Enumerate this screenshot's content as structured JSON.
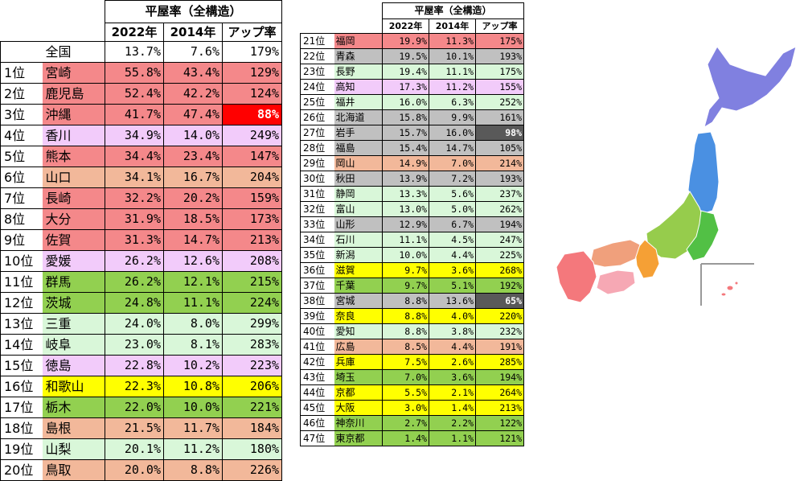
{
  "colors": {
    "kyushu": "#f4888a",
    "shikoku": "#f2cbfa",
    "chugoku": "#f2b89a",
    "kanto": "#92d050",
    "kansai": "#ffff00",
    "chubu": "#d9f7d9",
    "tohoku": "#c0c0c0",
    "hokkaido_tbl": "#c0c0c0",
    "national": "#ffffff",
    "rise_red": "#ff0000",
    "rise_gray": "#595959",
    "map_hokkaido": "#8080e0",
    "map_tohoku": "#4a90e2",
    "map_kanto": "#52c045",
    "map_chubu": "#96cc4c",
    "map_kansai": "#f5a035",
    "map_chugoku": "#f0a07c",
    "map_shikoku": "#f6a8b4",
    "map_kyushu": "#f4787c",
    "map_okinawa_frame": "#999999"
  },
  "chart_data": {
    "type": "table",
    "title": "平屋率（全構造）",
    "columns": [
      "2022年",
      "2014年",
      "アップ率"
    ],
    "national": {
      "label": "全国",
      "y2022": "13.7%",
      "y2014": "7.6%",
      "rise": "179%"
    },
    "rows": [
      {
        "rank": "1位",
        "pref": "宮崎",
        "y2022": "55.8%",
        "y2014": "43.4%",
        "rise": "129%",
        "region": "kyushu"
      },
      {
        "rank": "2位",
        "pref": "鹿児島",
        "y2022": "52.4%",
        "y2014": "42.2%",
        "rise": "124%",
        "region": "kyushu"
      },
      {
        "rank": "3位",
        "pref": "沖縄",
        "y2022": "41.7%",
        "y2014": "47.4%",
        "rise": "88%",
        "region": "kyushu",
        "highlight": "red"
      },
      {
        "rank": "4位",
        "pref": "香川",
        "y2022": "34.9%",
        "y2014": "14.0%",
        "rise": "249%",
        "region": "shikoku"
      },
      {
        "rank": "5位",
        "pref": "熊本",
        "y2022": "34.4%",
        "y2014": "23.4%",
        "rise": "147%",
        "region": "kyushu"
      },
      {
        "rank": "6位",
        "pref": "山口",
        "y2022": "34.1%",
        "y2014": "16.7%",
        "rise": "204%",
        "region": "chugoku"
      },
      {
        "rank": "7位",
        "pref": "長崎",
        "y2022": "32.2%",
        "y2014": "20.2%",
        "rise": "159%",
        "region": "kyushu"
      },
      {
        "rank": "8位",
        "pref": "大分",
        "y2022": "31.9%",
        "y2014": "18.5%",
        "rise": "173%",
        "region": "kyushu"
      },
      {
        "rank": "9位",
        "pref": "佐賀",
        "y2022": "31.3%",
        "y2014": "14.7%",
        "rise": "213%",
        "region": "kyushu"
      },
      {
        "rank": "10位",
        "pref": "愛媛",
        "y2022": "26.2%",
        "y2014": "12.6%",
        "rise": "208%",
        "region": "shikoku"
      },
      {
        "rank": "11位",
        "pref": "群馬",
        "y2022": "26.2%",
        "y2014": "12.1%",
        "rise": "215%",
        "region": "kanto"
      },
      {
        "rank": "12位",
        "pref": "茨城",
        "y2022": "24.8%",
        "y2014": "11.1%",
        "rise": "224%",
        "region": "kanto"
      },
      {
        "rank": "13位",
        "pref": "三重",
        "y2022": "24.0%",
        "y2014": "8.0%",
        "rise": "299%",
        "region": "chubu"
      },
      {
        "rank": "14位",
        "pref": "岐阜",
        "y2022": "23.0%",
        "y2014": "8.1%",
        "rise": "283%",
        "region": "chubu"
      },
      {
        "rank": "15位",
        "pref": "徳島",
        "y2022": "22.8%",
        "y2014": "10.2%",
        "rise": "223%",
        "region": "shikoku"
      },
      {
        "rank": "16位",
        "pref": "和歌山",
        "y2022": "22.3%",
        "y2014": "10.8%",
        "rise": "206%",
        "region": "kansai"
      },
      {
        "rank": "17位",
        "pref": "栃木",
        "y2022": "22.0%",
        "y2014": "10.0%",
        "rise": "221%",
        "region": "kanto"
      },
      {
        "rank": "18位",
        "pref": "島根",
        "y2022": "21.5%",
        "y2014": "11.7%",
        "rise": "184%",
        "region": "chugoku"
      },
      {
        "rank": "19位",
        "pref": "山梨",
        "y2022": "20.1%",
        "y2014": "11.2%",
        "rise": "180%",
        "region": "chubu"
      },
      {
        "rank": "20位",
        "pref": "鳥取",
        "y2022": "20.0%",
        "y2014": "8.8%",
        "rise": "226%",
        "region": "chugoku"
      },
      {
        "rank": "21位",
        "pref": "福岡",
        "y2022": "19.9%",
        "y2014": "11.3%",
        "rise": "175%",
        "region": "kyushu"
      },
      {
        "rank": "22位",
        "pref": "青森",
        "y2022": "19.5%",
        "y2014": "10.1%",
        "rise": "193%",
        "region": "tohoku"
      },
      {
        "rank": "23位",
        "pref": "長野",
        "y2022": "19.4%",
        "y2014": "11.1%",
        "rise": "175%",
        "region": "chubu"
      },
      {
        "rank": "24位",
        "pref": "高知",
        "y2022": "17.3%",
        "y2014": "11.2%",
        "rise": "155%",
        "region": "shikoku"
      },
      {
        "rank": "25位",
        "pref": "福井",
        "y2022": "16.0%",
        "y2014": "6.3%",
        "rise": "252%",
        "region": "chubu"
      },
      {
        "rank": "26位",
        "pref": "北海道",
        "y2022": "15.8%",
        "y2014": "9.9%",
        "rise": "161%",
        "region": "hokkaido_tbl"
      },
      {
        "rank": "27位",
        "pref": "岩手",
        "y2022": "15.7%",
        "y2014": "16.0%",
        "rise": "98%",
        "region": "tohoku",
        "highlight": "gray"
      },
      {
        "rank": "28位",
        "pref": "福島",
        "y2022": "15.4%",
        "y2014": "14.7%",
        "rise": "105%",
        "region": "tohoku"
      },
      {
        "rank": "29位",
        "pref": "岡山",
        "y2022": "14.9%",
        "y2014": "7.0%",
        "rise": "214%",
        "region": "chugoku"
      },
      {
        "rank": "30位",
        "pref": "秋田",
        "y2022": "13.9%",
        "y2014": "7.2%",
        "rise": "193%",
        "region": "tohoku"
      },
      {
        "rank": "31位",
        "pref": "静岡",
        "y2022": "13.3%",
        "y2014": "5.6%",
        "rise": "237%",
        "region": "chubu"
      },
      {
        "rank": "32位",
        "pref": "富山",
        "y2022": "13.0%",
        "y2014": "5.0%",
        "rise": "262%",
        "region": "chubu"
      },
      {
        "rank": "33位",
        "pref": "山形",
        "y2022": "12.9%",
        "y2014": "6.7%",
        "rise": "194%",
        "region": "tohoku"
      },
      {
        "rank": "34位",
        "pref": "石川",
        "y2022": "11.1%",
        "y2014": "4.5%",
        "rise": "247%",
        "region": "chubu"
      },
      {
        "rank": "35位",
        "pref": "新潟",
        "y2022": "10.0%",
        "y2014": "4.4%",
        "rise": "225%",
        "region": "chubu"
      },
      {
        "rank": "36位",
        "pref": "滋賀",
        "y2022": "9.7%",
        "y2014": "3.6%",
        "rise": "268%",
        "region": "kansai"
      },
      {
        "rank": "37位",
        "pref": "千葉",
        "y2022": "9.7%",
        "y2014": "5.1%",
        "rise": "192%",
        "region": "kanto"
      },
      {
        "rank": "38位",
        "pref": "宮城",
        "y2022": "8.8%",
        "y2014": "13.6%",
        "rise": "65%",
        "region": "tohoku",
        "highlight": "gray"
      },
      {
        "rank": "39位",
        "pref": "奈良",
        "y2022": "8.8%",
        "y2014": "4.0%",
        "rise": "220%",
        "region": "kansai"
      },
      {
        "rank": "40位",
        "pref": "愛知",
        "y2022": "8.8%",
        "y2014": "3.8%",
        "rise": "232%",
        "region": "chubu"
      },
      {
        "rank": "41位",
        "pref": "広島",
        "y2022": "8.5%",
        "y2014": "4.4%",
        "rise": "191%",
        "region": "chugoku"
      },
      {
        "rank": "42位",
        "pref": "兵庫",
        "y2022": "7.5%",
        "y2014": "2.6%",
        "rise": "285%",
        "region": "kansai"
      },
      {
        "rank": "43位",
        "pref": "埼玉",
        "y2022": "7.0%",
        "y2014": "3.6%",
        "rise": "194%",
        "region": "kanto"
      },
      {
        "rank": "44位",
        "pref": "京都",
        "y2022": "5.5%",
        "y2014": "2.1%",
        "rise": "264%",
        "region": "kansai"
      },
      {
        "rank": "45位",
        "pref": "大阪",
        "y2022": "3.0%",
        "y2014": "1.4%",
        "rise": "213%",
        "region": "kansai"
      },
      {
        "rank": "46位",
        "pref": "神奈川",
        "y2022": "2.7%",
        "y2014": "2.2%",
        "rise": "122%",
        "region": "kanto"
      },
      {
        "rank": "47位",
        "pref": "東京都",
        "y2022": "1.4%",
        "y2014": "1.1%",
        "rise": "121%",
        "region": "kanto"
      }
    ]
  }
}
